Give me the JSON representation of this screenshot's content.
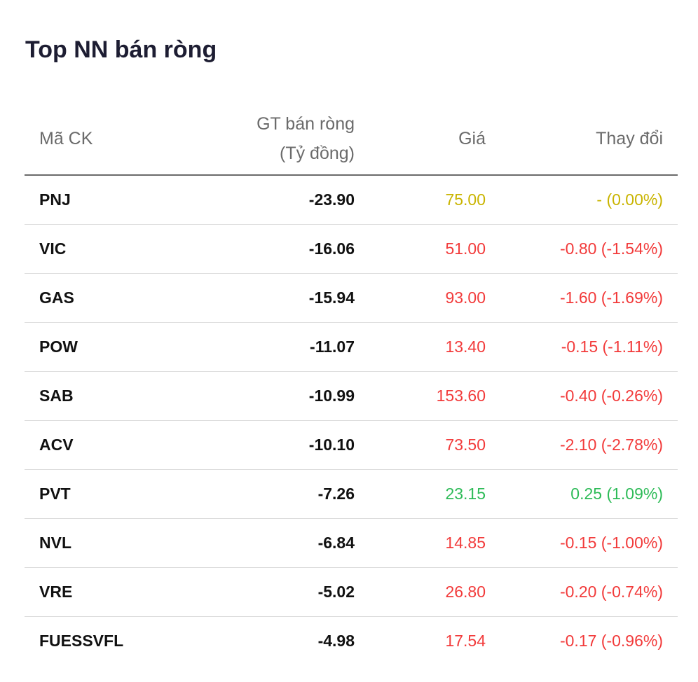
{
  "title": "Top NN bán ròng",
  "colors": {
    "reference": "#c9b400",
    "decrease": "#f23a3a",
    "increase": "#2dbb57",
    "header_text": "#6b6b6b",
    "title_text": "#1d1d32"
  },
  "table": {
    "headers": {
      "symbol": "Mã CK",
      "net_sell_line1": "GT bán ròng",
      "net_sell_line2": "(Tỷ đồng)",
      "price": "Giá",
      "change": "Thay đổi"
    },
    "rows": [
      {
        "symbol": "PNJ",
        "net_sell": "-23.90",
        "price": "75.00",
        "change": "- (0.00%)",
        "trend": "ref"
      },
      {
        "symbol": "VIC",
        "net_sell": "-16.06",
        "price": "51.00",
        "change": "-0.80 (-1.54%)",
        "trend": "down"
      },
      {
        "symbol": "GAS",
        "net_sell": "-15.94",
        "price": "93.00",
        "change": "-1.60 (-1.69%)",
        "trend": "down"
      },
      {
        "symbol": "POW",
        "net_sell": "-11.07",
        "price": "13.40",
        "change": "-0.15 (-1.11%)",
        "trend": "down"
      },
      {
        "symbol": "SAB",
        "net_sell": "-10.99",
        "price": "153.60",
        "change": "-0.40 (-0.26%)",
        "trend": "down"
      },
      {
        "symbol": "ACV",
        "net_sell": "-10.10",
        "price": "73.50",
        "change": "-2.10 (-2.78%)",
        "trend": "down"
      },
      {
        "symbol": "PVT",
        "net_sell": "-7.26",
        "price": "23.15",
        "change": "0.25 (1.09%)",
        "trend": "up"
      },
      {
        "symbol": "NVL",
        "net_sell": "-6.84",
        "price": "14.85",
        "change": "-0.15 (-1.00%)",
        "trend": "down"
      },
      {
        "symbol": "VRE",
        "net_sell": "-5.02",
        "price": "26.80",
        "change": "-0.20 (-0.74%)",
        "trend": "down"
      },
      {
        "symbol": "FUESSVFL",
        "net_sell": "-4.98",
        "price": "17.54",
        "change": "-0.17 (-0.96%)",
        "trend": "down"
      }
    ]
  }
}
